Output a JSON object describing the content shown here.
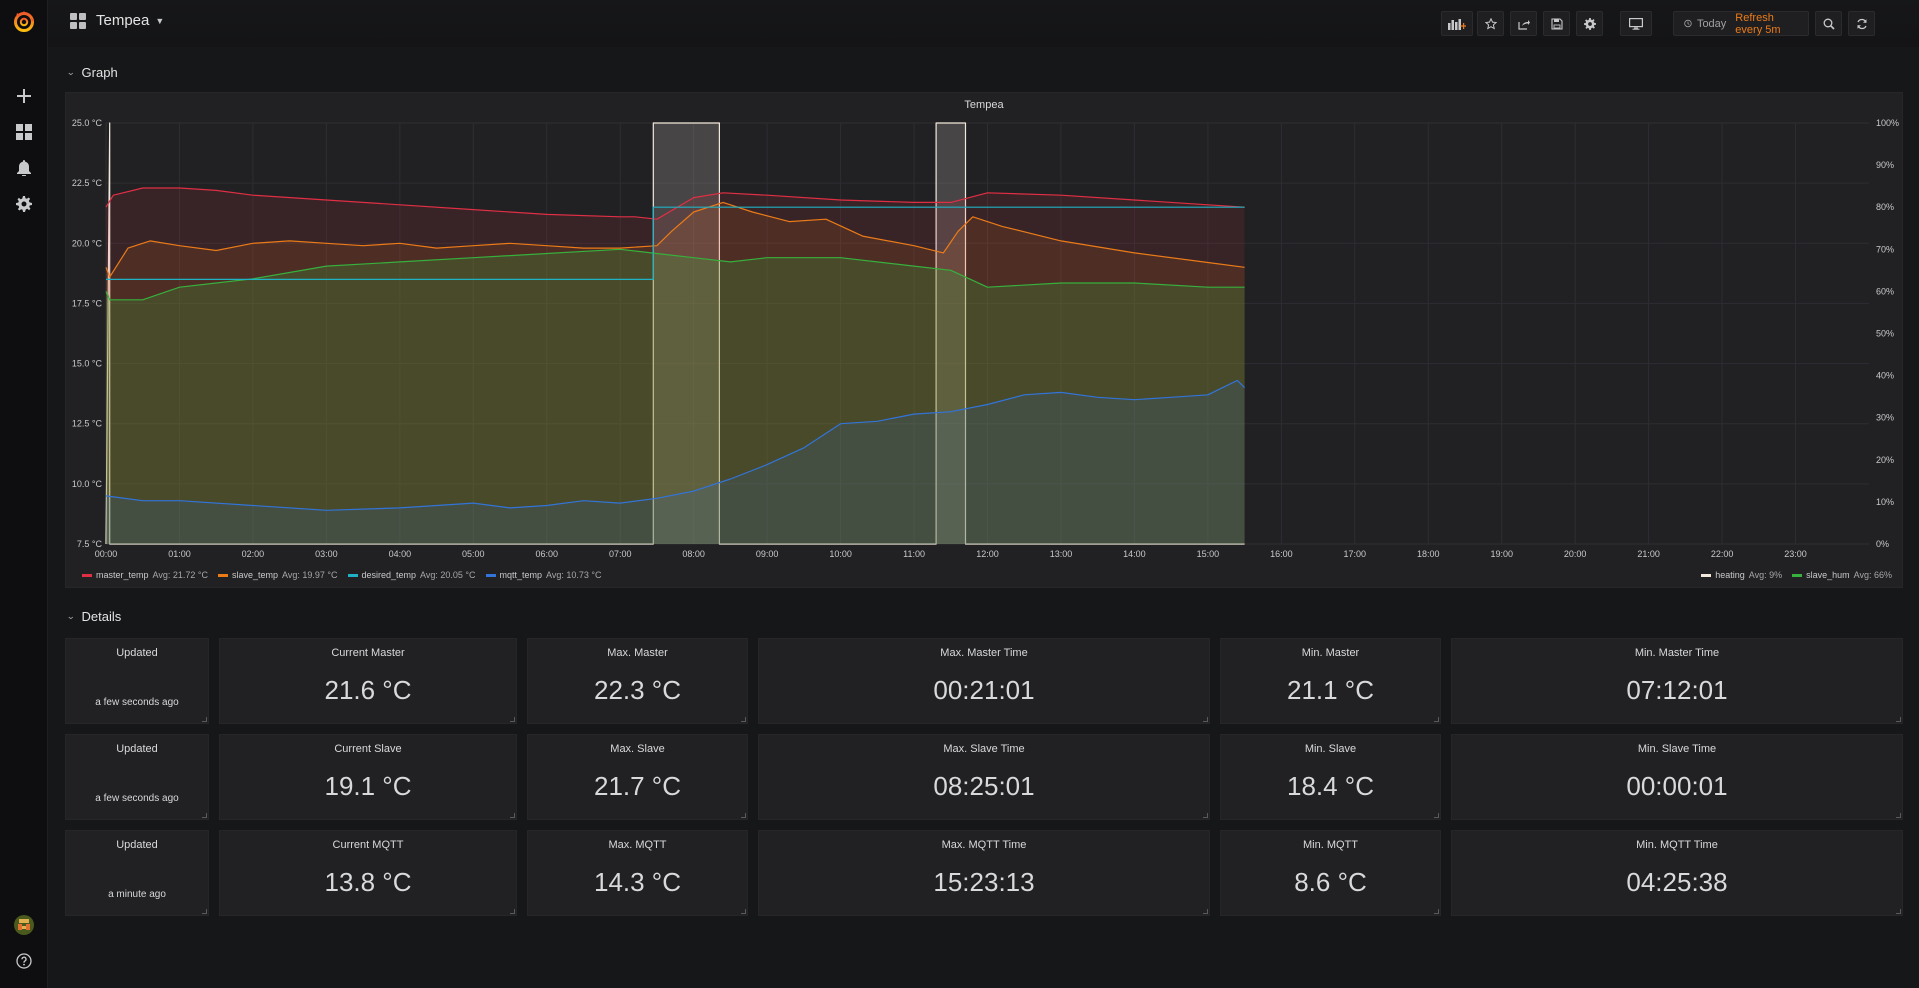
{
  "navbar": {
    "dashboard_title": "Tempea",
    "time_range": "Today",
    "refresh": "Refresh every 5m"
  },
  "rows": {
    "graph": "Graph",
    "details": "Details"
  },
  "graph": {
    "title": "Tempea",
    "left_axis_ticks": [
      "25.0 °C",
      "22.5 °C",
      "20.0 °C",
      "17.5 °C",
      "15.0 °C",
      "12.5 °C",
      "10.0 °C",
      "7.5 °C"
    ],
    "right_axis_ticks": [
      "100%",
      "90%",
      "80%",
      "70%",
      "60%",
      "50%",
      "40%",
      "30%",
      "20%",
      "10%",
      "0%"
    ],
    "x_ticks": [
      "00:00",
      "01:00",
      "02:00",
      "03:00",
      "04:00",
      "05:00",
      "06:00",
      "07:00",
      "08:00",
      "09:00",
      "10:00",
      "11:00",
      "12:00",
      "13:00",
      "14:00",
      "15:00",
      "16:00",
      "17:00",
      "18:00",
      "19:00",
      "20:00",
      "21:00",
      "22:00",
      "23:00"
    ],
    "legend_left": [
      {
        "name": "master_temp",
        "avg": "Avg: 21.72 °C",
        "color": "#e02f44"
      },
      {
        "name": "slave_temp",
        "avg": "Avg: 19.97 °C",
        "color": "#eb7b18"
      },
      {
        "name": "desired_temp",
        "avg": "Avg: 20.05 °C",
        "color": "#1fb2c4"
      },
      {
        "name": "mqtt_temp",
        "avg": "Avg: 10.73 °C",
        "color": "#3274d9"
      }
    ],
    "legend_right": [
      {
        "name": "heating",
        "avg": "Avg: 9%",
        "color": "#f2e9dc"
      },
      {
        "name": "slave_hum",
        "avg": "Avg: 66%",
        "color": "#37b03d"
      }
    ]
  },
  "chart_data": {
    "type": "line",
    "x_unit": "hour of day",
    "x_range": [
      0,
      24
    ],
    "ylim_left": [
      7.5,
      25.0
    ],
    "ylim_right": [
      0,
      100
    ],
    "series": [
      {
        "name": "master_temp",
        "axis": "left",
        "color": "#e02f44",
        "x": [
          0,
          0.1,
          0.5,
          1,
          1.5,
          2,
          3,
          4,
          5,
          6,
          7,
          7.2,
          7.5,
          8,
          8.4,
          9,
          10,
          11,
          11.5,
          12,
          13,
          14,
          15,
          15.5
        ],
        "y": [
          21.5,
          22.0,
          22.3,
          22.3,
          22.2,
          22.0,
          21.8,
          21.6,
          21.4,
          21.2,
          21.1,
          21.1,
          21.0,
          21.9,
          22.1,
          22.0,
          21.8,
          21.7,
          21.7,
          22.1,
          22.0,
          21.8,
          21.6,
          21.5
        ]
      },
      {
        "name": "slave_temp",
        "axis": "left",
        "color": "#eb7b18",
        "x": [
          0,
          0.05,
          0.3,
          0.6,
          1,
          1.5,
          2,
          2.5,
          3,
          3.5,
          4,
          4.5,
          5,
          5.5,
          6,
          6.5,
          7,
          7.5,
          7.7,
          8,
          8.4,
          8.8,
          9.3,
          9.8,
          10.3,
          11,
          11.4,
          11.6,
          11.8,
          12.2,
          13,
          14,
          15,
          15.5
        ],
        "y": [
          19.0,
          18.6,
          19.8,
          20.1,
          19.9,
          19.7,
          20.0,
          20.1,
          20.0,
          19.9,
          20.0,
          19.8,
          19.9,
          20.0,
          19.9,
          19.8,
          19.8,
          19.9,
          20.5,
          21.3,
          21.7,
          21.3,
          20.9,
          21.0,
          20.3,
          19.9,
          19.6,
          20.5,
          21.1,
          20.7,
          20.1,
          19.6,
          19.2,
          19.0
        ]
      },
      {
        "name": "desired_temp",
        "axis": "left",
        "color": "#1fb2c4",
        "x": [
          0,
          7.45,
          7.45,
          15.5
        ],
        "y": [
          18.5,
          18.5,
          21.5,
          21.5
        ]
      },
      {
        "name": "mqtt_temp",
        "axis": "left",
        "color": "#3274d9",
        "x": [
          0,
          0.5,
          1,
          2,
          3,
          4,
          5,
          5.5,
          6,
          6.5,
          7,
          7.5,
          8,
          8.5,
          9,
          9.5,
          10,
          10.5,
          11,
          11.5,
          12,
          12.5,
          13,
          13.5,
          14,
          14.5,
          15,
          15.4,
          15.5
        ],
        "y": [
          9.5,
          9.3,
          9.3,
          9.1,
          8.9,
          9.0,
          9.2,
          9.0,
          9.1,
          9.3,
          9.2,
          9.4,
          9.7,
          10.2,
          10.8,
          11.5,
          12.5,
          12.6,
          12.9,
          13.0,
          13.3,
          13.7,
          13.8,
          13.6,
          13.5,
          13.6,
          13.7,
          14.3,
          14.0
        ]
      },
      {
        "name": "slave_hum",
        "axis": "right",
        "color": "#37b03d",
        "x": [
          0,
          0.05,
          0.5,
          1,
          1.5,
          2,
          3,
          4,
          5,
          6,
          7,
          7.5,
          8,
          8.5,
          9,
          10,
          11,
          11.5,
          12,
          13,
          14,
          15,
          15.5
        ],
        "y": [
          60,
          58,
          58,
          61,
          62,
          63,
          66,
          67,
          68,
          69,
          70,
          69,
          68,
          67,
          68,
          68,
          66,
          65,
          61,
          62,
          62,
          61,
          61
        ]
      },
      {
        "name": "heating",
        "axis": "right",
        "color": "#f2e9dc",
        "x": [
          0,
          0.05,
          0.05,
          7.45,
          7.45,
          8.35,
          8.35,
          11.3,
          11.3,
          11.7,
          11.7,
          15.5
        ],
        "y": [
          0,
          100,
          0,
          0,
          100,
          100,
          0,
          0,
          100,
          100,
          0,
          0
        ]
      }
    ]
  },
  "details": {
    "rows": [
      [
        {
          "title": "Updated",
          "value": "a few seconds ago",
          "small": true
        },
        {
          "title": "Current Master",
          "value": "21.6 °C"
        },
        {
          "title": "Max. Master",
          "value": "22.3 °C"
        },
        {
          "title": "Max. Master Time",
          "value": "00:21:01"
        },
        {
          "title": "Min. Master",
          "value": "21.1 °C"
        },
        {
          "title": "Min. Master Time",
          "value": "07:12:01"
        }
      ],
      [
        {
          "title": "Updated",
          "value": "a few seconds ago",
          "small": true
        },
        {
          "title": "Current Slave",
          "value": "19.1 °C"
        },
        {
          "title": "Max. Slave",
          "value": "21.7 °C"
        },
        {
          "title": "Max. Slave Time",
          "value": "08:25:01"
        },
        {
          "title": "Min. Slave",
          "value": "18.4 °C"
        },
        {
          "title": "Min. Slave Time",
          "value": "00:00:01"
        }
      ],
      [
        {
          "title": "Updated",
          "value": "a minute ago",
          "small": true
        },
        {
          "title": "Current MQTT",
          "value": "13.8 °C"
        },
        {
          "title": "Max. MQTT",
          "value": "14.3 °C"
        },
        {
          "title": "Max. MQTT Time",
          "value": "15:23:13"
        },
        {
          "title": "Min. MQTT",
          "value": "8.6 °C"
        },
        {
          "title": "Min. MQTT Time",
          "value": "04:25:38"
        }
      ]
    ]
  },
  "icons": {
    "logo": "grafana-logo-icon",
    "create": "plus-icon",
    "dashboards": "dashboards-icon",
    "alerting": "bell-icon",
    "configuration": "gear-icon",
    "profile": "avatar",
    "help": "help-icon"
  }
}
